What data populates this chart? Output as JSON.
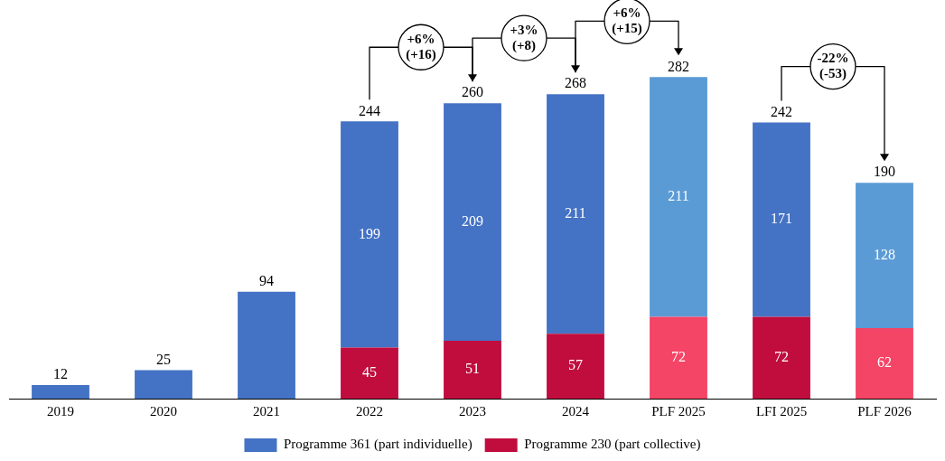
{
  "chart_data": {
    "type": "bar",
    "stacked": true,
    "categories": [
      "2019",
      "2020",
      "2021",
      "2022",
      "2023",
      "2024",
      "PLF 2025",
      "LFI 2025",
      "PLF 2026"
    ],
    "series": [
      {
        "name": "Programme 230 (part collective)",
        "color": "#c00d3e",
        "colors": [
          "#c00d3e",
          "#c00d3e",
          "#c00d3e",
          "#c00d3e",
          "#c00d3e",
          "#c00d3e",
          "#f44566",
          "#c00d3e",
          "#f44566"
        ],
        "values": [
          null,
          null,
          null,
          45,
          51,
          57,
          72,
          72,
          62
        ],
        "value_labels": [
          null,
          null,
          null,
          "45",
          "51",
          "57",
          "72",
          "72",
          "62"
        ]
      },
      {
        "name": "Programme 361 (part individuelle)",
        "color": "#4472c4",
        "colors": [
          "#4472c4",
          "#4472c4",
          "#4472c4",
          "#4472c4",
          "#4472c4",
          "#4472c4",
          "#5b9bd5",
          "#4472c4",
          "#5b9bd5"
        ],
        "values": [
          12,
          25,
          94,
          199,
          209,
          211,
          211,
          171,
          128
        ],
        "value_labels": [
          null,
          null,
          null,
          "199",
          "209",
          "211",
          "211",
          "171",
          "128"
        ]
      }
    ],
    "totals": [
      "12",
      "25",
      "94",
      "244",
      "260",
      "268",
      "282",
      "242",
      "190"
    ],
    "annotations": [
      "+6%\n(+16)",
      "+3%\n(+8)",
      "+6%\n(+15)",
      "-22%\n(-53)"
    ],
    "legend": "bottom",
    "grid": false
  }
}
